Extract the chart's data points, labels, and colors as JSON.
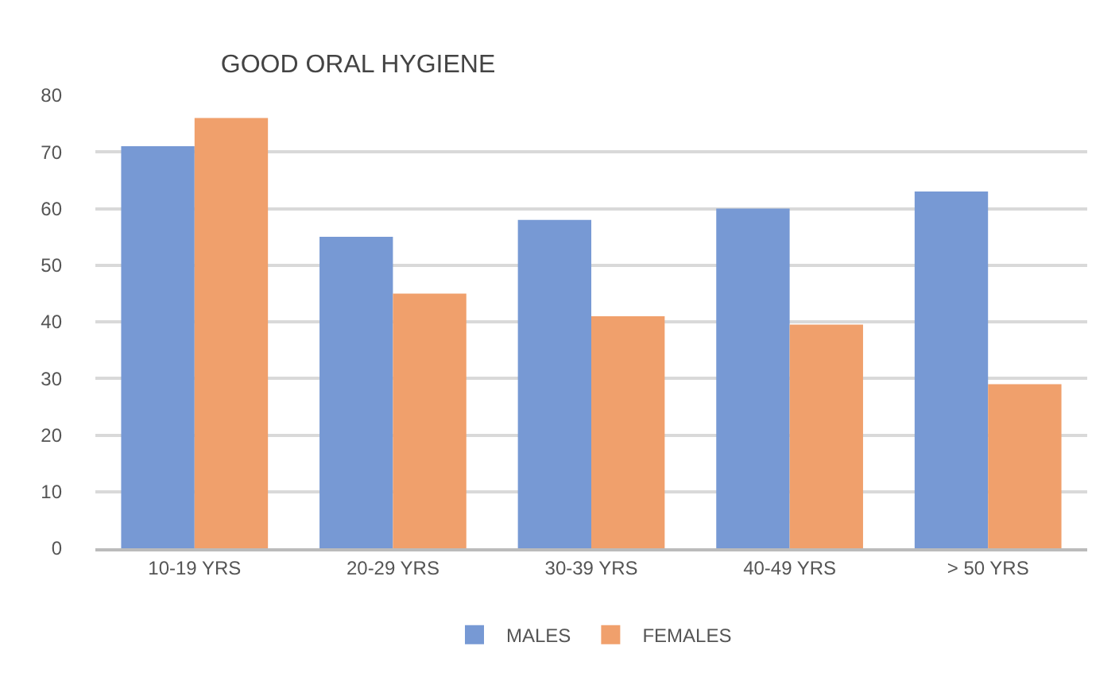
{
  "chart_data": {
    "type": "bar",
    "title": "GOOD ORAL HYGIENE",
    "categories": [
      "10-19 YRS",
      "20-29 YRS",
      "30-39 YRS",
      "40-49 YRS",
      "> 50 YRS"
    ],
    "series": [
      {
        "name": "MALES",
        "color": "#7799d4",
        "values": [
          71,
          55,
          58,
          60,
          63
        ]
      },
      {
        "name": "FEMALES",
        "color": "#f0a06c",
        "values": [
          76,
          45,
          41,
          39.5,
          29
        ]
      }
    ],
    "ylim": [
      0,
      80
    ],
    "yticks": [
      0,
      10,
      20,
      30,
      40,
      50,
      60,
      70,
      80
    ],
    "grid": "y",
    "legend": "bottom"
  }
}
